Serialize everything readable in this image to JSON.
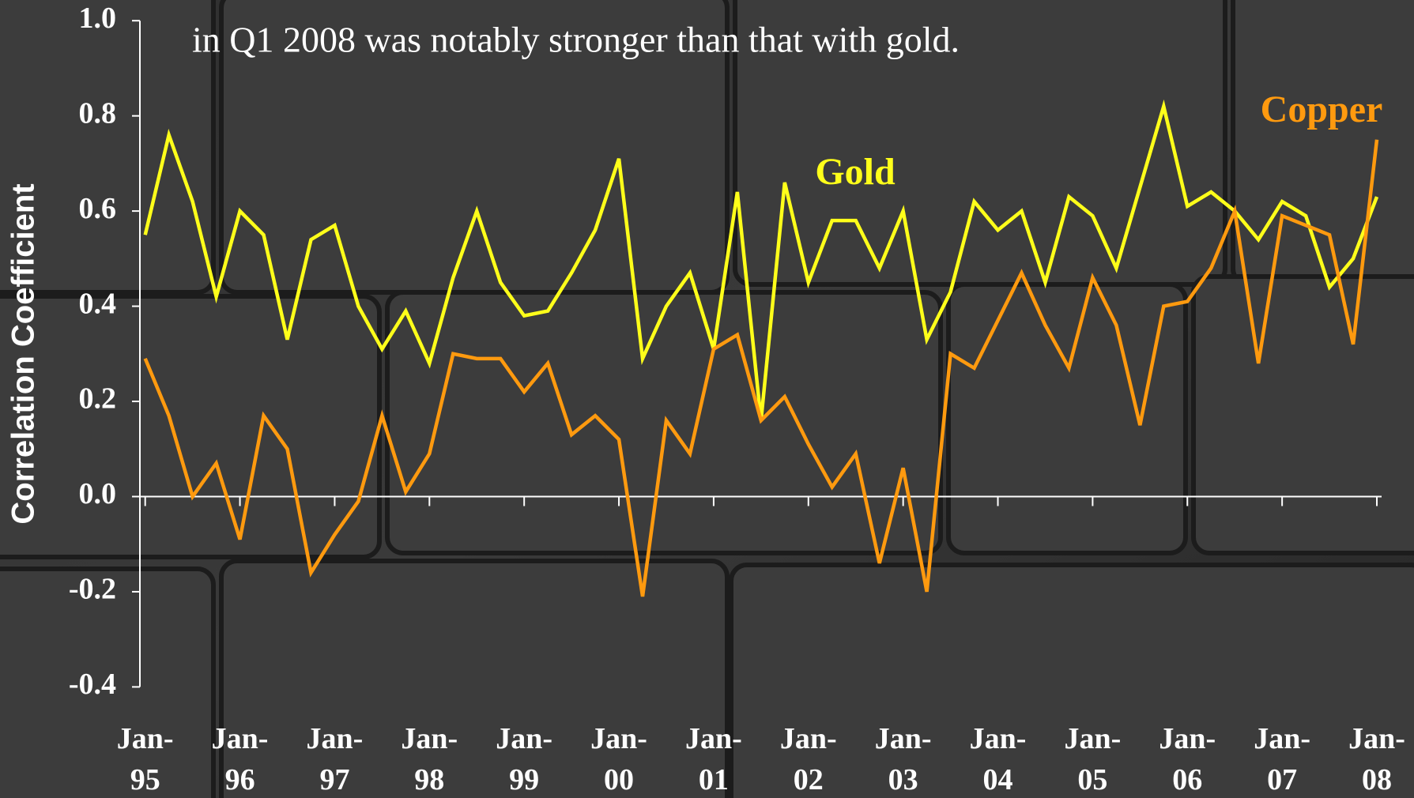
{
  "chart_data": {
    "type": "line",
    "title": "in Q1 2008 was notably stronger than that with gold.",
    "y_label": "Correlation Coefficient",
    "categories": [
      "Jan-95",
      null,
      null,
      null,
      "Jan-96",
      null,
      null,
      null,
      "Jan-97",
      null,
      null,
      null,
      "Jan-98",
      null,
      null,
      null,
      "Jan-99",
      null,
      null,
      null,
      "Jan-00",
      null,
      null,
      null,
      "Jan-01",
      null,
      null,
      null,
      "Jan-02",
      null,
      null,
      null,
      "Jan-03",
      null,
      null,
      null,
      "Jan-04",
      null,
      null,
      null,
      "Jan-05",
      null,
      null,
      null,
      "Jan-06",
      null,
      null,
      null,
      "Jan-07",
      null,
      null,
      null,
      "Jan-08"
    ],
    "series": [
      {
        "name": "Gold",
        "color": "#ffff1a",
        "values": [
          0.55,
          0.76,
          0.62,
          0.42,
          0.6,
          0.55,
          0.33,
          0.54,
          0.57,
          0.4,
          0.31,
          0.39,
          0.28,
          0.46,
          0.6,
          0.45,
          0.38,
          0.39,
          0.47,
          0.56,
          0.71,
          0.29,
          0.4,
          0.47,
          0.31,
          0.64,
          0.16,
          0.66,
          0.45,
          0.58,
          0.58,
          0.48,
          0.6,
          0.33,
          0.43,
          0.62,
          0.56,
          0.6,
          0.45,
          0.63,
          0.59,
          0.48,
          0.65,
          0.82,
          0.61,
          0.64,
          0.6,
          0.54,
          0.62,
          0.59,
          0.44,
          0.5,
          0.63
        ]
      },
      {
        "name": "Copper",
        "color": "#ff9a0f",
        "values": [
          0.29,
          0.17,
          0.0,
          0.07,
          -0.09,
          0.17,
          0.1,
          -0.16,
          -0.08,
          -0.01,
          0.17,
          0.01,
          0.09,
          0.3,
          0.29,
          0.29,
          0.22,
          0.28,
          0.13,
          0.17,
          0.12,
          -0.21,
          0.16,
          0.09,
          0.31,
          0.34,
          0.16,
          0.21,
          0.11,
          0.02,
          0.09,
          -0.14,
          0.06,
          -0.2,
          0.3,
          0.27,
          0.37,
          0.47,
          0.36,
          0.27,
          0.46,
          0.36,
          0.15,
          0.4,
          0.41,
          0.48,
          0.6,
          0.28,
          0.59,
          0.57,
          0.55,
          0.32,
          0.75
        ]
      }
    ],
    "ylim": [
      -0.4,
      1.0
    ],
    "yticks": [
      -0.4,
      -0.2,
      {
        "value": 0,
        "label": "0.0"
      },
      0.2,
      0.4,
      0.6,
      0.8,
      {
        "value": 1,
        "label": "1.0"
      }
    ]
  }
}
